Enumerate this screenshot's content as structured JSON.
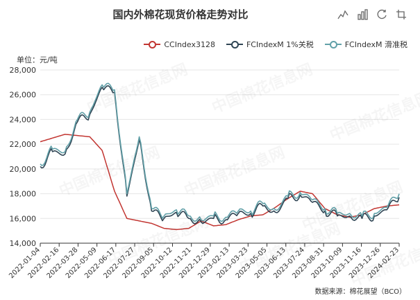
{
  "title": "国内外棉花现货价格走势对比",
  "unit_label": "单位：元/吨",
  "source_label": "数据来源：棉花展望（BCO）",
  "watermark": "中国棉花信息网",
  "toolbox": {
    "icons": [
      "line-chart-icon",
      "bar-chart-icon",
      "restore-icon",
      "crop-icon"
    ]
  },
  "legend": [
    {
      "label": "CCIndex3128",
      "color": "#c23531"
    },
    {
      "label": "FCIndexM 1%关税",
      "color": "#2f4554"
    },
    {
      "label": "FCIndexM 滑准税",
      "color": "#61a0a8"
    }
  ],
  "chart_data": {
    "type": "line",
    "x_ticks": [
      "2022-01-04",
      "2022-02-16",
      "2022-03-28",
      "2022-05-09",
      "2022-06-17",
      "2022-07-27",
      "2022-09-05",
      "2022-10-12",
      "2022-11-21",
      "2022-12-29",
      "2023-02-13",
      "2023-03-23",
      "2023-05-05",
      "2023-06-13",
      "2023-07-24",
      "2023-08-31",
      "2023-10-09",
      "2023-11-16",
      "2023-12-26",
      "2024-02-23"
    ],
    "y_ticks": [
      "14,000",
      "16,000",
      "18,000",
      "20,000",
      "22,000",
      "24,000",
      "26,000",
      "28,000"
    ],
    "ylim": [
      14000,
      28000
    ],
    "series": [
      {
        "name": "CCIndex3128",
        "color": "#c23531",
        "values": [
          22200,
          22500,
          22800,
          22700,
          22600,
          21500,
          18200,
          16000,
          15800,
          15600,
          15200,
          15100,
          15200,
          15800,
          15400,
          15500,
          15900,
          16200,
          16300,
          16900,
          17600,
          18200,
          18000,
          16800,
          16300,
          16100,
          16300,
          16800,
          17000,
          17100
        ]
      },
      {
        "name": "FCIndexM 1%关税",
        "color": "#2f4554",
        "values": [
          20200,
          21400,
          21200,
          23800,
          24400,
          26600,
          26200,
          17800,
          22400,
          16600,
          16000,
          16500,
          16000,
          15700,
          16000,
          15900,
          16400,
          16400,
          17000,
          16500,
          17600,
          17900,
          17300,
          16600,
          16200,
          16200,
          16000,
          16200,
          16700,
          17700
        ]
      },
      {
        "name": "FCIndexM 滑准税",
        "color": "#61a0a8",
        "values": [
          20400,
          21600,
          21400,
          24000,
          24600,
          26800,
          26400,
          18000,
          22600,
          16800,
          16200,
          16700,
          16200,
          15900,
          16200,
          16100,
          16600,
          16600,
          17200,
          16700,
          17800,
          18100,
          17500,
          16800,
          16400,
          16400,
          16200,
          16400,
          16900,
          18000
        ]
      }
    ]
  }
}
